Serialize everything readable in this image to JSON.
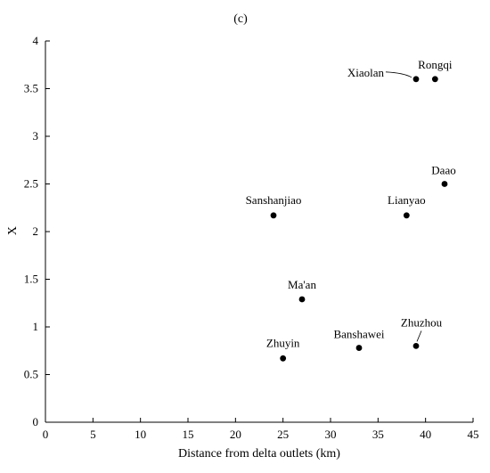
{
  "chart_data": {
    "type": "scatter",
    "title": "(c)",
    "xlabel": "Distance from delta outlets (km)",
    "ylabel": "X",
    "xlim": [
      0,
      45
    ],
    "ylim": [
      0,
      4
    ],
    "xticks": [
      0,
      5,
      10,
      15,
      20,
      25,
      30,
      35,
      40,
      45
    ],
    "yticks": [
      0,
      0.5,
      1,
      1.5,
      2,
      2.5,
      3,
      3.5,
      4
    ],
    "xtick_labels": [
      "0",
      "5",
      "10",
      "15",
      "20",
      "25",
      "30",
      "35",
      "40",
      "45"
    ],
    "ytick_labels": [
      "0",
      "0.5",
      "1",
      "1.5",
      "2",
      "2.5",
      "3",
      "3.5",
      "4"
    ],
    "grid": false,
    "points": [
      {
        "label": "Xiaolan",
        "x": 39,
        "y": 3.6
      },
      {
        "label": "Rongqi",
        "x": 41,
        "y": 3.6
      },
      {
        "label": "Daao",
        "x": 42,
        "y": 2.5
      },
      {
        "label": "Sanshanjiao",
        "x": 24,
        "y": 2.17
      },
      {
        "label": "Lianyao",
        "x": 38,
        "y": 2.17
      },
      {
        "label": "Ma'an",
        "x": 27,
        "y": 1.29
      },
      {
        "label": "Zhuzhou",
        "x": 39,
        "y": 0.8
      },
      {
        "label": "Banshawei",
        "x": 33,
        "y": 0.78
      },
      {
        "label": "Zhuyin",
        "x": 25,
        "y": 0.67
      }
    ]
  }
}
